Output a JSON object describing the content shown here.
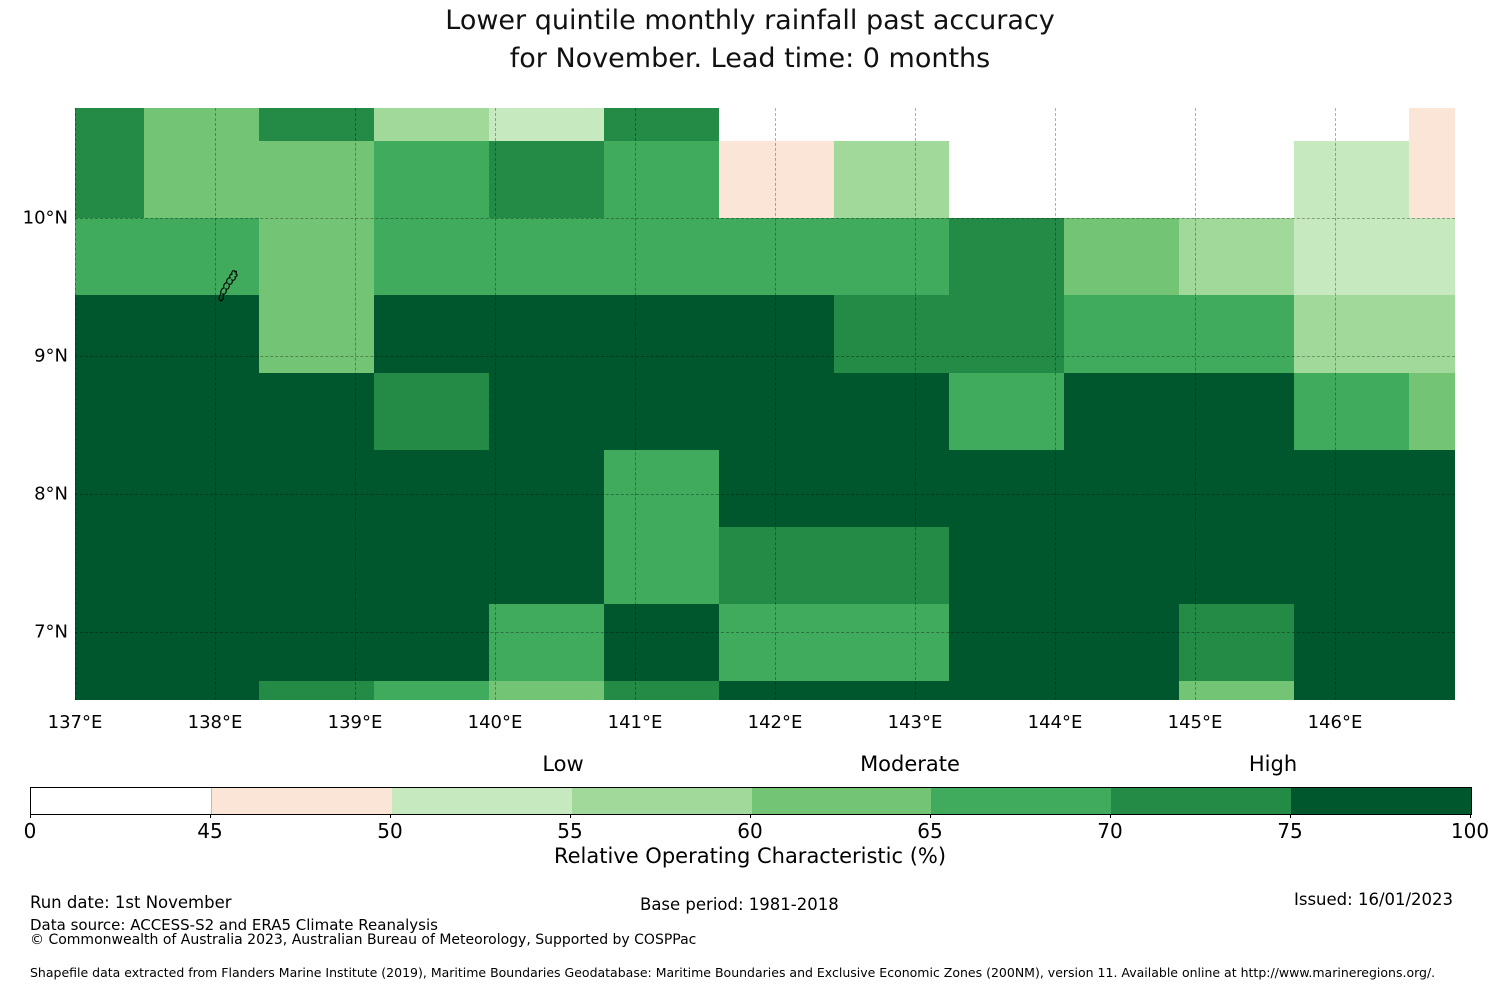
{
  "title": {
    "line1": "Lower quintile monthly rainfall past accuracy",
    "line2": "for November. Lead time: 0 months"
  },
  "chart_data": {
    "type": "heatmap",
    "title": "Lower quintile monthly rainfall past accuracy for November. Lead time: 0 months",
    "x_axis": {
      "ticks": [
        "137°E",
        "138°E",
        "139°E",
        "140°E",
        "141°E",
        "142°E",
        "143°E",
        "144°E",
        "145°E",
        "146°E"
      ],
      "tick_values": [
        137,
        138,
        139,
        140,
        141,
        142,
        143,
        144,
        145,
        146
      ],
      "range": [
        137.0,
        146.86
      ]
    },
    "y_axis": {
      "ticks": [
        "10°N",
        "9°N",
        "8°N",
        "7°N"
      ],
      "tick_values": [
        10,
        9,
        8,
        7
      ],
      "range": [
        6.51,
        10.8
      ]
    },
    "grid": {
      "lon_edges": [
        137.0,
        137.493,
        138.314,
        139.136,
        139.957,
        140.779,
        141.6,
        142.421,
        143.243,
        144.064,
        144.886,
        145.707,
        146.529,
        146.857
      ],
      "lat_edges": [
        10.797,
        10.558,
        10.0,
        9.443,
        8.879,
        8.321,
        7.764,
        7.206,
        6.648,
        6.51
      ],
      "values": [
        [
          70,
          60,
          70,
          55,
          50,
          70,
          0,
          0,
          0,
          0,
          0,
          0,
          45
        ],
        [
          70,
          60,
          60,
          65,
          70,
          65,
          45,
          55,
          0,
          0,
          0,
          50,
          45
        ],
        [
          65,
          65,
          60,
          65,
          65,
          65,
          65,
          65,
          70,
          60,
          55,
          50,
          50
        ],
        [
          75,
          75,
          60,
          75,
          75,
          75,
          75,
          70,
          70,
          65,
          65,
          55,
          55
        ],
        [
          75,
          75,
          75,
          70,
          75,
          75,
          75,
          75,
          65,
          75,
          75,
          65,
          60
        ],
        [
          75,
          75,
          75,
          75,
          75,
          65,
          75,
          75,
          75,
          75,
          75,
          75,
          75
        ],
        [
          75,
          75,
          75,
          75,
          75,
          65,
          70,
          70,
          75,
          75,
          75,
          75,
          75
        ],
        [
          75,
          75,
          75,
          75,
          65,
          75,
          65,
          65,
          75,
          75,
          70,
          75,
          75
        ],
        [
          75,
          75,
          70,
          65,
          60,
          70,
          75,
          75,
          75,
          75,
          60,
          75,
          75
        ]
      ]
    },
    "bins": [
      {
        "value": 0,
        "range": "0-45",
        "color": "#ffffff"
      },
      {
        "value": 45,
        "range": "45-50",
        "color": "#fbe5d6"
      },
      {
        "value": 50,
        "range": "50-55",
        "color": "#c7e9c0"
      },
      {
        "value": 55,
        "range": "55-60",
        "color": "#a1d99b"
      },
      {
        "value": 60,
        "range": "60-65",
        "color": "#74c476"
      },
      {
        "value": 65,
        "range": "65-70",
        "color": "#41ab5d"
      },
      {
        "value": 70,
        "range": "70-75",
        "color": "#238b45"
      },
      {
        "value": 75,
        "range": "75-100",
        "color": "#00572d"
      }
    ],
    "colorbar": {
      "ticks": [
        0,
        45,
        50,
        55,
        60,
        65,
        70,
        75,
        100
      ],
      "zone_labels": {
        "low": "Low",
        "moderate": "Moderate",
        "high": "High"
      },
      "axis_label": "Relative Operating Characteristic (%)"
    },
    "legend_position": "bottom",
    "grid_lines": true
  },
  "footer": {
    "run_date": "Run date: 1st November",
    "data_source": "Data source: ACCESS-S2 and ERA5 Climate Reanalysis",
    "copyright": "© Commonwealth of Australia 2023, Australian Bureau of Meteorology, Supported by COSPPac",
    "base_period": "Base period: 1981-2018",
    "issued": "Issued: 16/01/2023",
    "shapefile_note": "Shapefile data extracted from Flanders Marine Institute (2019), Maritime Boundaries Geodatabase: Maritime Boundaries and Exclusive Economic Zones (200NM), version 11. Available online at http://www.marineregions.org/."
  }
}
